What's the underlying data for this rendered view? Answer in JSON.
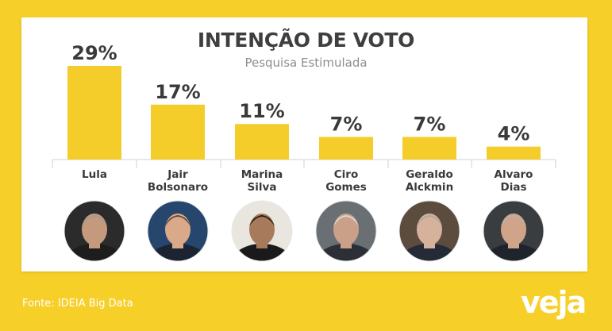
{
  "header": {
    "title": "INTENÇÃO DE VOTO",
    "subtitle": "Pesquisa Estimulada"
  },
  "footer": {
    "source": "Fonte: IDEIA Big Data",
    "brand_logo": "veja"
  },
  "colors": {
    "background": "#f6cf29",
    "bar": "#f4cd2a",
    "panel": "#ffffff",
    "text": "#3a3a3a"
  },
  "chart_data": {
    "type": "bar",
    "title": "INTENÇÃO DE VOTO",
    "subtitle": "Pesquisa Estimulada",
    "categories": [
      "Lula",
      "Jair Bolsonaro",
      "Marina Silva",
      "Ciro Gomes",
      "Geraldo Alckmin",
      "Alvaro Dias"
    ],
    "category_lines": [
      [
        "Lula"
      ],
      [
        "Jair",
        "Bolsonaro"
      ],
      [
        "Marina",
        "Silva"
      ],
      [
        "Ciro",
        "Gomes"
      ],
      [
        "Geraldo",
        "Alckmin"
      ],
      [
        "Alvaro",
        "Dias"
      ]
    ],
    "values": [
      29,
      17,
      11,
      7,
      7,
      4
    ],
    "value_labels": [
      "29%",
      "17%",
      "11%",
      "7%",
      "7%",
      "4%"
    ],
    "unit": "%",
    "ylim": [
      0,
      29
    ],
    "grid": false,
    "legend": "none",
    "photos": [
      "lula-photo",
      "bolsonaro-photo",
      "marina-photo",
      "ciro-photo",
      "alckmin-photo",
      "alvaro-photo"
    ]
  }
}
